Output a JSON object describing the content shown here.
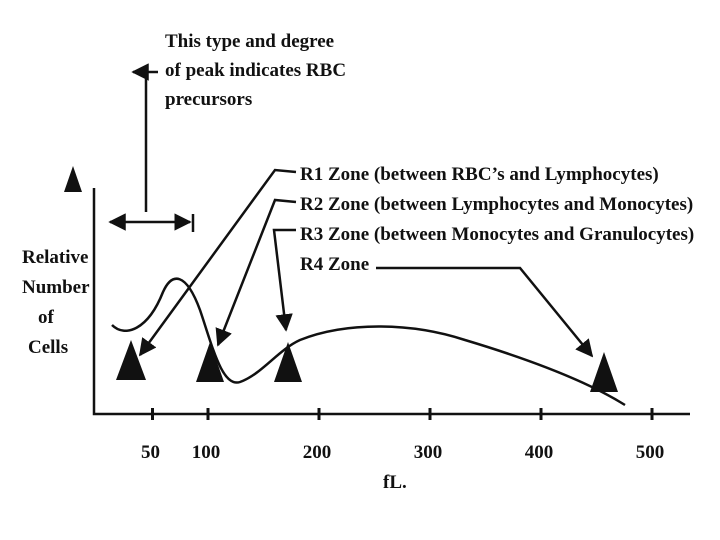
{
  "annotation": {
    "lines": [
      "This type and degree",
      "of peak indicates RBC",
      "precursors"
    ]
  },
  "zones": [
    "R1 Zone (between RBC’s and Lymphocytes)",
    "R2 Zone (between Lymphocytes and Monocytes)",
    "R3 Zone (between Monocytes and Granulocytes)",
    "R4 Zone"
  ],
  "y_axis": {
    "lines": [
      "Relative",
      "Number",
      "of",
      "Cells"
    ]
  },
  "x_axis": {
    "label": "fL.",
    "ticks": [
      50,
      100,
      200,
      300,
      400,
      500
    ]
  }
}
